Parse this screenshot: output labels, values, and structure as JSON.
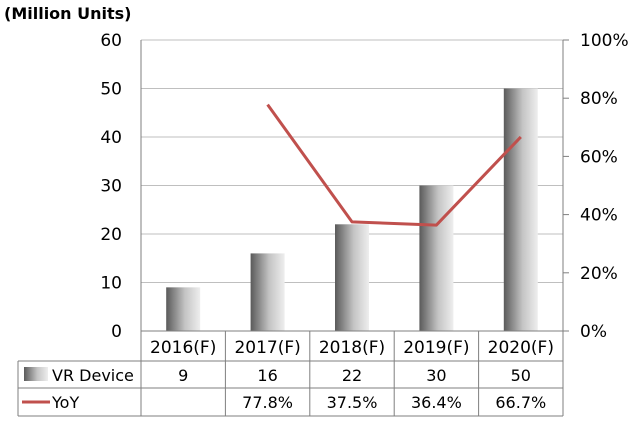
{
  "chart_data": {
    "type": "bar",
    "unit_label": "(Million Units)",
    "categories": [
      "2016(F)",
      "2017(F)",
      "2018(F)",
      "2019(F)",
      "2020(F)"
    ],
    "series": [
      {
        "name": "VR Device",
        "type": "bar",
        "axis": "left",
        "values": [
          9,
          16,
          22,
          30,
          50
        ],
        "labels": [
          "9",
          "16",
          "22",
          "30",
          "50"
        ]
      },
      {
        "name": "YoY",
        "type": "line",
        "axis": "right",
        "color": "#C0504D",
        "values": [
          null,
          77.8,
          37.5,
          36.4,
          66.7
        ],
        "labels": [
          "",
          "77.8%",
          "37.5%",
          "36.4%",
          "66.7%"
        ]
      }
    ],
    "y_left": {
      "min": 0,
      "max": 60,
      "ticks": [
        "0",
        "10",
        "20",
        "30",
        "40",
        "50",
        "60"
      ]
    },
    "y_right": {
      "min": 0,
      "max": 100,
      "ticks": [
        "0%",
        "20%",
        "40%",
        "60%",
        "80%",
        "100%"
      ]
    },
    "grid": true,
    "legend": "data table"
  }
}
